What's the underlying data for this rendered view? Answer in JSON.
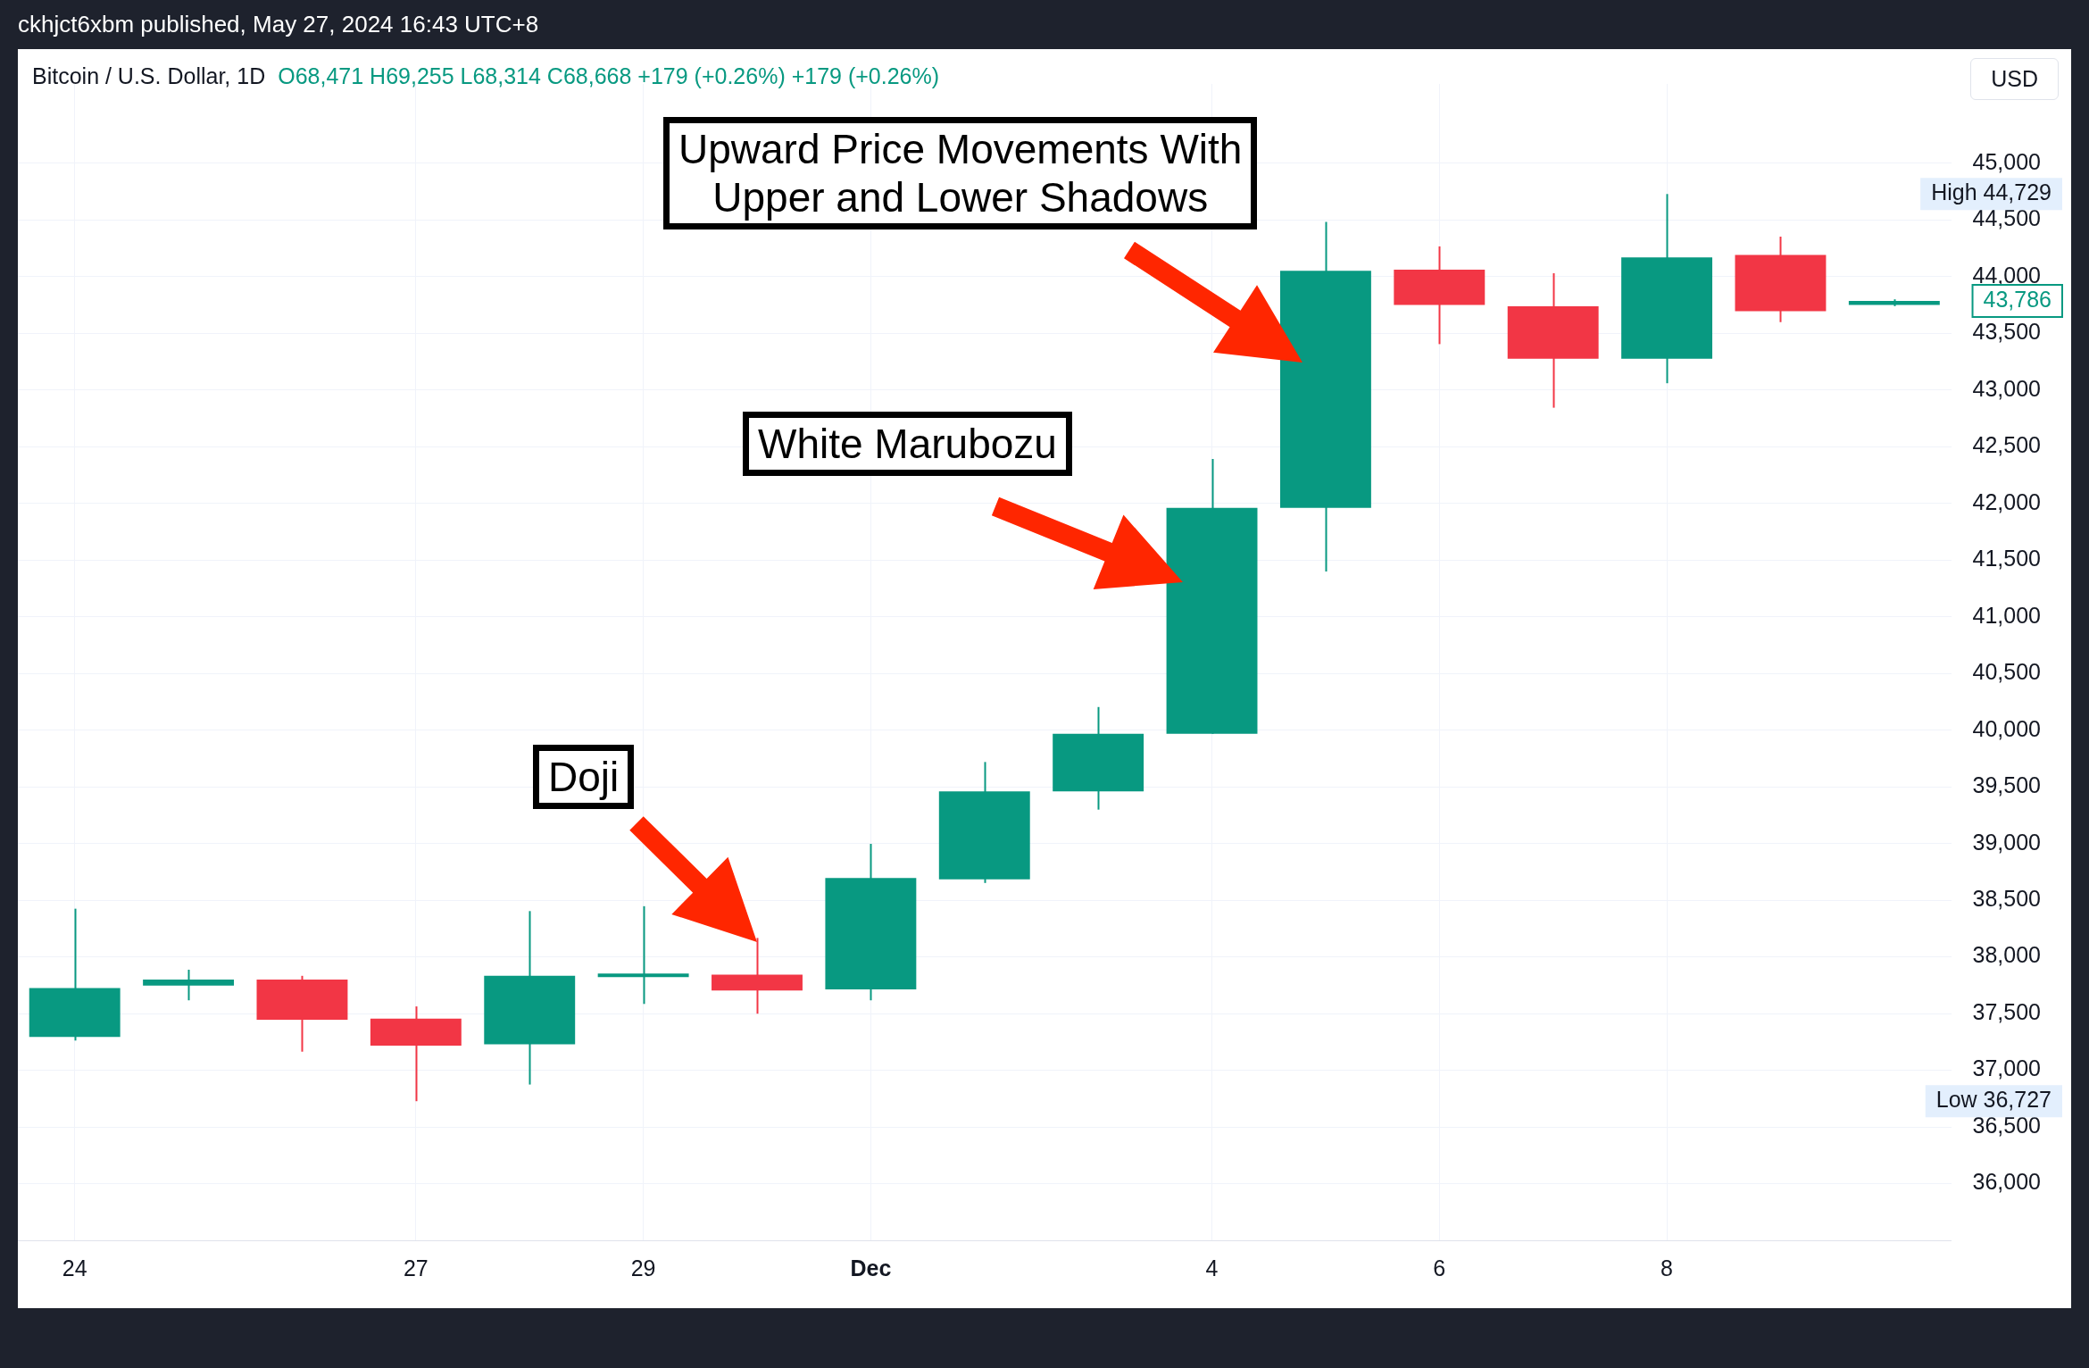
{
  "chart_data": {
    "type": "candlestick",
    "title": "Bitcoin / U.S. Dollar, 1D",
    "subtitle": "O68,471  H69,255  L68,314  C68,668  +179 (+0.26%)  +179 (+0.26%)",
    "categories": [
      "24",
      null,
      null,
      "27",
      null,
      "29",
      null,
      "Dec",
      null,
      null,
      "4",
      null,
      "6",
      null,
      "8",
      null,
      null
    ],
    "ohlc": [
      [
        37294,
        38425,
        37262,
        37725
      ],
      [
        37747,
        37887,
        37617,
        37800
      ],
      [
        37800,
        37833,
        37164,
        37445
      ],
      [
        37456,
        37563,
        36727,
        37218
      ],
      [
        37229,
        38404,
        36874,
        37833
      ],
      [
        37822,
        38447,
        37585,
        37844
      ],
      [
        37844,
        38167,
        37499,
        37703
      ],
      [
        37714,
        38997,
        37617,
        38695
      ],
      [
        38684,
        39719,
        38652,
        39460
      ],
      [
        39460,
        40204,
        39299,
        39967
      ],
      [
        39967,
        42392,
        39967,
        41961
      ],
      [
        41961,
        44483,
        41400,
        44052
      ],
      [
        44062,
        44267,
        43405,
        43750
      ],
      [
        43739,
        44030,
        42844,
        43276
      ],
      [
        43276,
        44729,
        43060,
        44170
      ],
      [
        44192,
        44353,
        43599,
        43696
      ],
      [
        43750,
        43800,
        43740,
        43786
      ]
    ],
    "colors": [
      "#089981",
      "#089981",
      "#f23645",
      "#f23645",
      "#089981",
      "#089981",
      "#f23645",
      "#089981",
      "#089981",
      "#089981",
      "#089981",
      "#089981",
      "#f23645",
      "#f23645",
      "#089981",
      "#f23645",
      "#089981"
    ],
    "ylim": [
      35500,
      45700
    ],
    "yticks": [
      {
        "value": 36000,
        "label": "36,000"
      },
      {
        "value": 36500,
        "label": "36,500"
      },
      {
        "value": 37000,
        "label": "37,000"
      },
      {
        "value": 37500,
        "label": "37,500"
      },
      {
        "value": 38000,
        "label": "38,000"
      },
      {
        "value": 38500,
        "label": "38,500"
      },
      {
        "value": 39000,
        "label": "39,000"
      },
      {
        "value": 39500,
        "label": "39,500"
      },
      {
        "value": 40000,
        "label": "40,000"
      },
      {
        "value": 40500,
        "label": "40,500"
      },
      {
        "value": 41000,
        "label": "41,000"
      },
      {
        "value": 41500,
        "label": "41,500"
      },
      {
        "value": 42000,
        "label": "42,000"
      },
      {
        "value": 42500,
        "label": "42,500"
      },
      {
        "value": 43000,
        "label": "43,000"
      },
      {
        "value": 43500,
        "label": "43,500"
      },
      {
        "value": 44000,
        "label": "44,000"
      },
      {
        "value": 44500,
        "label": "44,500"
      },
      {
        "value": 45000,
        "label": "45,000"
      }
    ],
    "grid": true,
    "legend": false,
    "annotations": [
      "ckhjct6xbm published, May 27, 2024 16:43 UTC+8",
      "USD",
      "High 44,729",
      "Low 36,727",
      "43,786",
      "Upward Price Movements With\nUpper and Lower Shadows",
      "White Marubozu",
      "Doji"
    ]
  }
}
